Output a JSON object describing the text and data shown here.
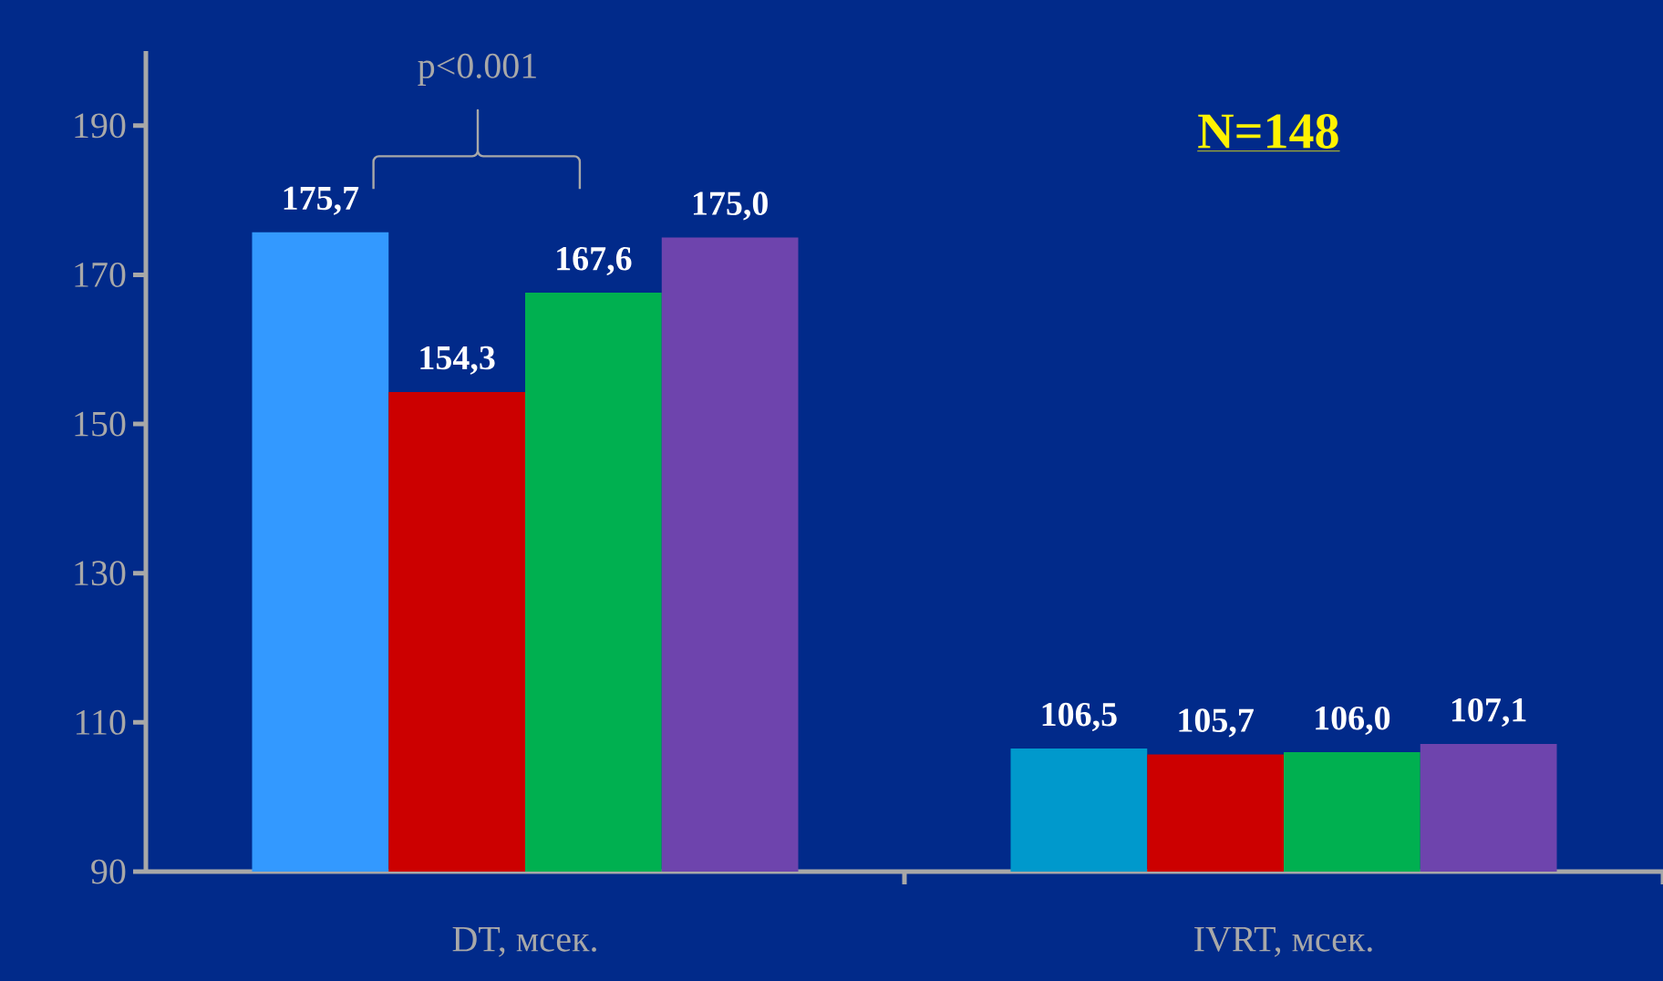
{
  "chart_data": {
    "type": "bar",
    "categories": [
      "DT, мсек.",
      "IVRT, мсек."
    ],
    "series": [
      {
        "colors": [
          "#3399ff",
          "#0099cc"
        ],
        "values": [
          175.7,
          106.5
        ],
        "value_labels": [
          "175,7",
          "106,5"
        ]
      },
      {
        "color": "#cc0000",
        "values": [
          154.3,
          105.7
        ],
        "value_labels": [
          "154,3",
          "105,7"
        ]
      },
      {
        "color": "#00b050",
        "values": [
          167.6,
          106.0
        ],
        "value_labels": [
          "167,6",
          "106,0"
        ]
      },
      {
        "color": "#6e44ad",
        "values": [
          175.0,
          107.1
        ],
        "value_labels": [
          "175,0",
          "107,1"
        ]
      }
    ],
    "ylim": [
      90,
      200
    ],
    "yticks": [
      90,
      110,
      130,
      150,
      170,
      190
    ],
    "annotations": [
      "p<0.001",
      "N=148"
    ]
  }
}
